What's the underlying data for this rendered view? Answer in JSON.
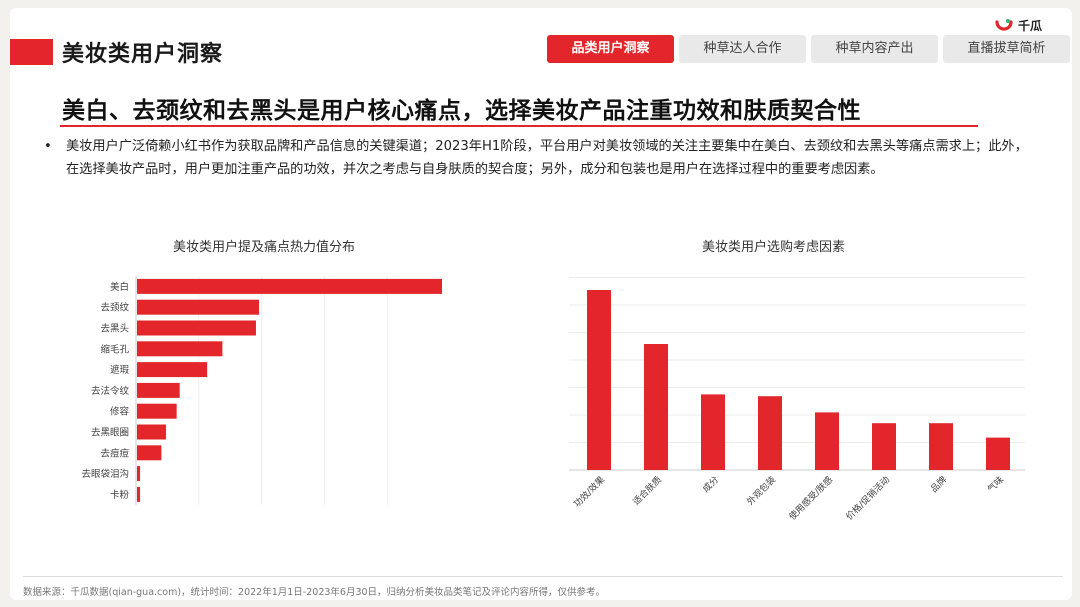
{
  "header": {
    "logo_text": "千瓜",
    "page_title": "美妆类用户洞察",
    "tabs": [
      {
        "label": "品类用户洞察",
        "active": true
      },
      {
        "label": "种草达人合作",
        "active": false
      },
      {
        "label": "种草内容产出",
        "active": false
      },
      {
        "label": "直播拔草简析",
        "active": false
      }
    ]
  },
  "headline": "美白、去颈纹和去黑头是用户核心痛点，选择美妆产品注重功效和肤质契合性",
  "bullet_text": "美妆用户广泛倚赖小红书作为获取品牌和产品信息的关键渠道；2023年H1阶段，平台用户对美妆领域的关注主要集中在美白、去颈纹和去黑头等痛点需求上；此外，在选择美妆产品时，用户更加注重产品的功效，并次之考虑与自身肤质的契合度；另外，成分和包装也是用户在选择过程中的重要考虑因素。",
  "colors": {
    "accent": "#e3262b"
  },
  "chart_data": [
    {
      "type": "bar",
      "orientation": "horizontal",
      "title": "美妆类用户提及痛点热力值分布",
      "categories": [
        "美白",
        "去颈纹",
        "去黑头",
        "缩毛孔",
        "遮瑕",
        "去法令纹",
        "修容",
        "去黑眼圈",
        "去痘痘",
        "去眼袋泪沟",
        "卡粉"
      ],
      "values": [
        100,
        40,
        39,
        28,
        23,
        14,
        13,
        9.5,
        8,
        1,
        1
      ],
      "grid": true
    },
    {
      "type": "bar",
      "orientation": "vertical",
      "title": "美妆类用户选购考虑因素",
      "categories": [
        "功效/效果",
        "适合肤质",
        "成分",
        "外观包装",
        "使用感受/肤感",
        "价格/促销活动",
        "品牌",
        "气味"
      ],
      "values": [
        100,
        70,
        42,
        41,
        32,
        26,
        26,
        18
      ],
      "grid": true
    }
  ],
  "footer": "数据来源：千瓜数据(qian-gua.com)，统计时间：2022年1月1日-2023年6月30日，归纳分析美妆品类笔记及评论内容所得，仅供参考。"
}
